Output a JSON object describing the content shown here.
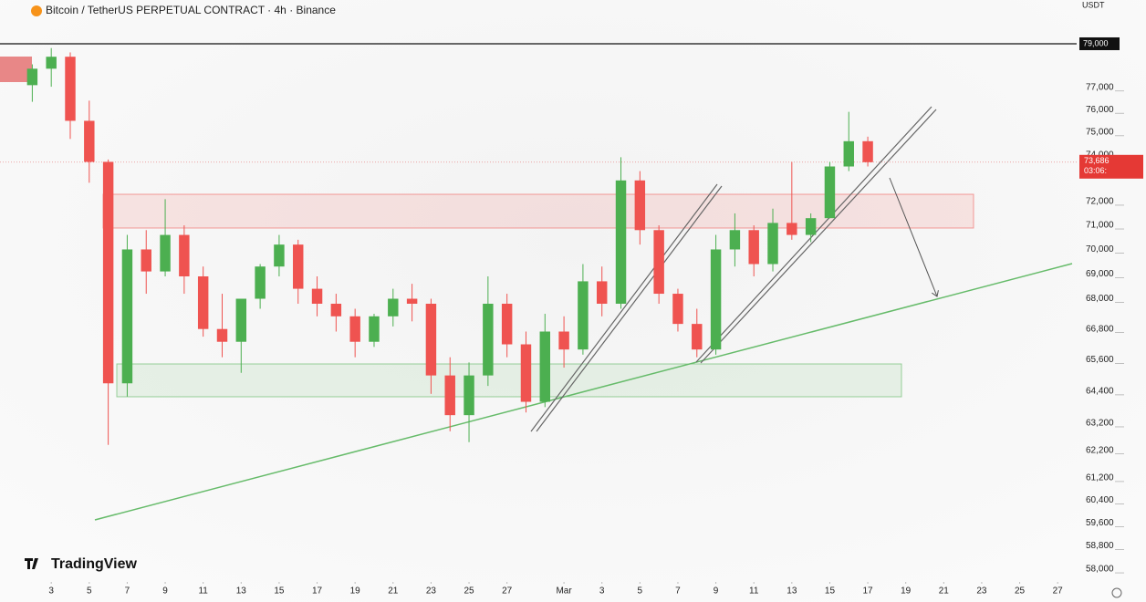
{
  "chart_data": {
    "type": "candlestick",
    "title": "Bitcoin / TetherUS PERPETUAL CONTRACT · 4h · Binance",
    "y_unit": "USDT",
    "watermark": "TradingView",
    "log_scale": true,
    "up_color": "#4caf50",
    "down_color": "#ef5350",
    "x": [
      2,
      3,
      4,
      5,
      6,
      7,
      8,
      9,
      10,
      11,
      12,
      13,
      14,
      15,
      16,
      17,
      18,
      19,
      20,
      21,
      22,
      23,
      24,
      25,
      26,
      27,
      28,
      29,
      30,
      31,
      32,
      33,
      34,
      35,
      36,
      37,
      38,
      39,
      40,
      41,
      42,
      43,
      44,
      45,
      46
    ],
    "open": [
      77100,
      77850,
      78400,
      75500,
      73700,
      64700,
      70000,
      69100,
      70600,
      68900,
      66800,
      66300,
      68000,
      69300,
      70200,
      68400,
      67800,
      67300,
      66300,
      67300,
      68000,
      67800,
      65000,
      63500,
      65000,
      67800,
      66200,
      64000,
      66700,
      66000,
      68700,
      67800,
      72900,
      70800,
      68200,
      67000,
      66000,
      70000,
      70800,
      69400,
      71100,
      70600,
      71300,
      73500,
      74600
    ],
    "high": [
      78050,
      78800,
      78600,
      76400,
      73800,
      70600,
      70800,
      72100,
      71000,
      69300,
      68200,
      67800,
      69400,
      70600,
      70400,
      68900,
      68200,
      67600,
      67400,
      68400,
      68600,
      68000,
      65700,
      65500,
      68900,
      68200,
      66700,
      67400,
      67300,
      69400,
      69300,
      73900,
      73300,
      71000,
      68400,
      67600,
      70600,
      71500,
      71000,
      71700,
      73700,
      71500,
      73700,
      75900,
      74800
    ],
    "low": [
      76350,
      77030,
      74700,
      72800,
      62400,
      64200,
      68200,
      68900,
      68200,
      66500,
      65700,
      65100,
      67600,
      68900,
      67800,
      67300,
      66700,
      65700,
      66100,
      66900,
      67100,
      64300,
      62900,
      62500,
      64600,
      65700,
      63600,
      63800,
      65300,
      65800,
      67300,
      67600,
      70200,
      67800,
      66700,
      65700,
      65800,
      69300,
      68900,
      69100,
      70400,
      70300,
      71300,
      73300,
      73500
    ],
    "close": [
      77850,
      78400,
      75500,
      73700,
      64700,
      70000,
      69100,
      70600,
      68900,
      66800,
      66300,
      68000,
      69300,
      70200,
      68400,
      67800,
      67300,
      66300,
      67300,
      68000,
      67800,
      65000,
      63500,
      65000,
      67800,
      66200,
      64000,
      66700,
      66000,
      68700,
      67800,
      72900,
      70800,
      68200,
      67000,
      66000,
      70000,
      70800,
      69400,
      71100,
      70600,
      71300,
      73500,
      74600,
      73686
    ],
    "xlim": [
      0.3,
      57
    ],
    "xticks": [
      3,
      5,
      7,
      9,
      11,
      13,
      15,
      17,
      19,
      21,
      23,
      25,
      27,
      {
        "value": 30,
        "label": "Mar"
      },
      {
        "value": 32,
        "label": "3"
      },
      {
        "value": 34,
        "label": "5"
      },
      {
        "value": 36,
        "label": "7"
      },
      {
        "value": 38,
        "label": "9"
      },
      {
        "value": 40,
        "label": "11"
      },
      {
        "value": 42,
        "label": "13"
      },
      {
        "value": 44,
        "label": "15"
      },
      {
        "value": 46,
        "label": "17"
      },
      {
        "value": 48,
        "label": "19"
      },
      {
        "value": 50,
        "label": "21"
      },
      {
        "value": 52,
        "label": "23"
      },
      {
        "value": 54,
        "label": "25"
      },
      {
        "value": 56,
        "label": "27"
      }
    ],
    "ylim": [
      57660,
      81060
    ],
    "yticks": [
      {
        "value": 77000,
        "label": "77,000"
      },
      {
        "value": 76000,
        "label": "76,000"
      },
      {
        "value": 75000,
        "label": "75,000"
      },
      {
        "value": 74000,
        "label": "74,000"
      },
      {
        "value": 72000,
        "label": "72,000"
      },
      {
        "value": 71000,
        "label": "71,000"
      },
      {
        "value": 70000,
        "label": "70,000"
      },
      {
        "value": 69000,
        "label": "69,000"
      },
      {
        "value": 68000,
        "label": "68,000"
      },
      {
        "value": 66800,
        "label": "66,800"
      },
      {
        "value": 65600,
        "label": "65,600"
      },
      {
        "value": 64400,
        "label": "64,400"
      },
      {
        "value": 63200,
        "label": "63,200"
      },
      {
        "value": 62200,
        "label": "62,200"
      },
      {
        "value": 61200,
        "label": "61,200"
      },
      {
        "value": 60400,
        "label": "60,400"
      },
      {
        "value": 59600,
        "label": "59,600"
      },
      {
        "value": 58800,
        "label": "58,800"
      },
      {
        "value": 58000,
        "label": "58,000"
      }
    ],
    "level": {
      "value": 79000,
      "label": "79,000"
    },
    "current_price": {
      "value": 73686,
      "label": "73,686"
    },
    "countdown": "03:06:"
  }
}
